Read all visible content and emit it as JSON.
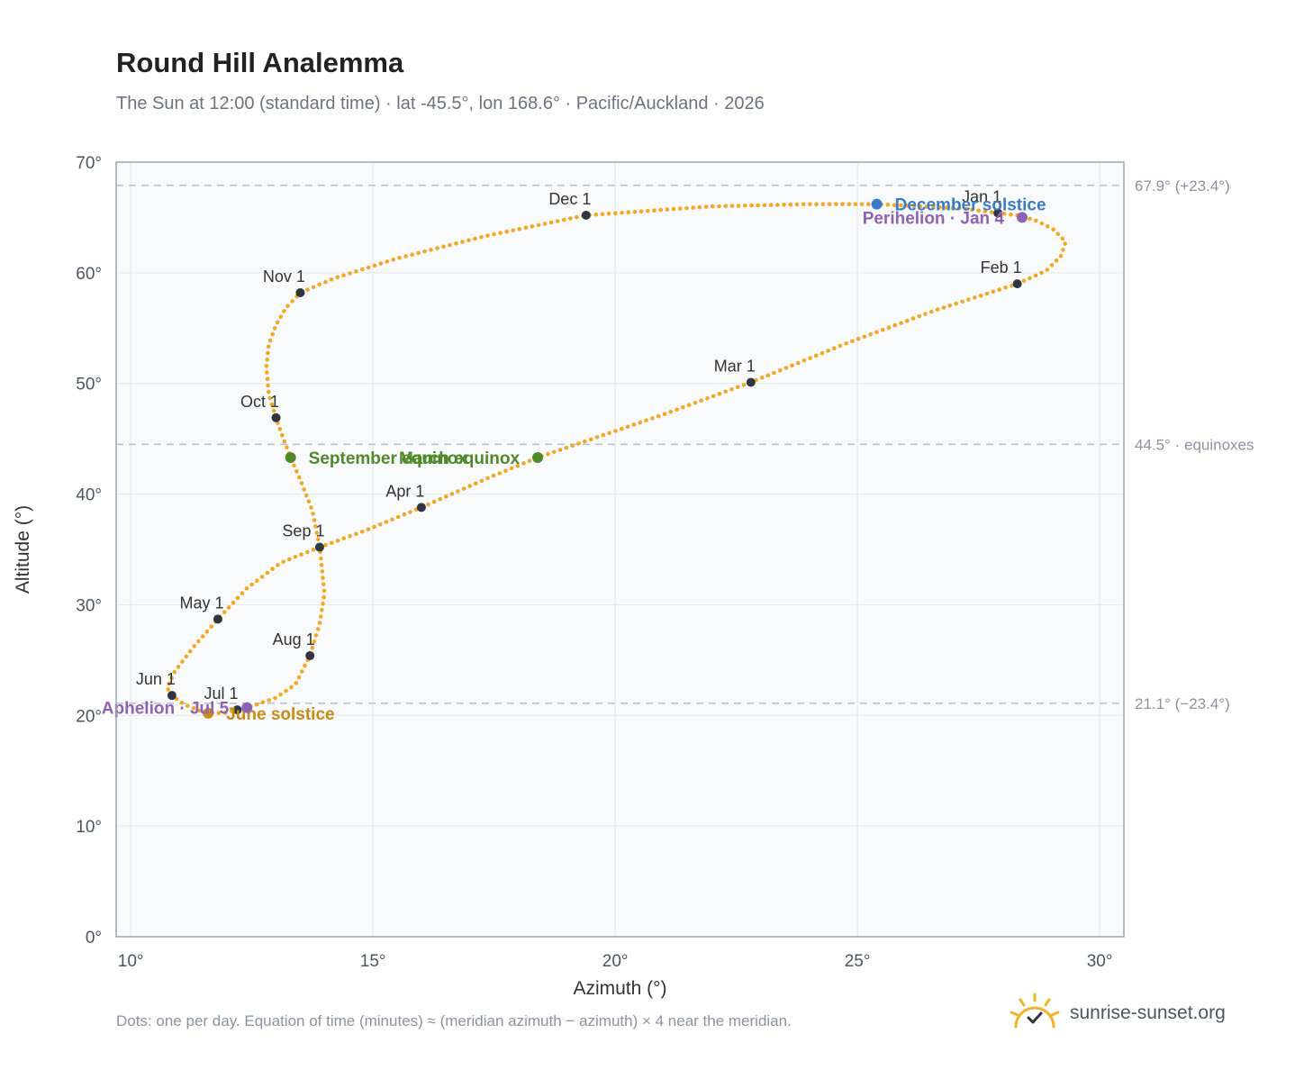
{
  "title": "Round Hill Analemma",
  "subtitle": "The Sun at 12:00 (standard time) · lat -45.5°, lon 168.6° · Pacific/Auckland · 2026",
  "footnote": "Dots: one per day. Equation of time (minutes) ≈ (meridian azimuth − azimuth) × 4 near the meridian.",
  "brand": {
    "text": "sunrise-sunset.org",
    "icon": "sun-logo-icon",
    "color": "#f0b429"
  },
  "colors": {
    "curve": "#f5a623",
    "month_marker": "#2f3640",
    "equinox": "#4f8a2a",
    "december_solstice": "#3a7bc8",
    "june_solstice": "#c98a12",
    "apsides": "#8e63b3",
    "plot_background": "#f8fafc",
    "frame": "#9aa5b4",
    "grid": "#e3e7ec",
    "reference_line": "#bcc4ce"
  },
  "chart_data": {
    "type": "scatter",
    "xlabel": "Azimuth (°)",
    "ylabel": "Altitude (°)",
    "xlim": [
      9.7,
      30.5
    ],
    "ylim": [
      0,
      70
    ],
    "x_ticks": [
      {
        "value": 10,
        "label": "10°"
      },
      {
        "value": 15,
        "label": "15°"
      },
      {
        "value": 20,
        "label": "20°"
      },
      {
        "value": 25,
        "label": "25°"
      },
      {
        "value": 30,
        "label": "30°"
      }
    ],
    "y_ticks": [
      {
        "value": 0,
        "label": "0°"
      },
      {
        "value": 10,
        "label": "10°"
      },
      {
        "value": 20,
        "label": "20°"
      },
      {
        "value": 30,
        "label": "30°"
      },
      {
        "value": 40,
        "label": "40°"
      },
      {
        "value": 50,
        "label": "50°"
      },
      {
        "value": 60,
        "label": "60°"
      },
      {
        "value": 70,
        "label": "70°"
      }
    ],
    "grid": true,
    "reference_lines": [
      {
        "altitude": 67.9,
        "label": "67.9° (+23.4°)"
      },
      {
        "altitude": 44.5,
        "label": "44.5° · equinoxes"
      },
      {
        "altitude": 21.1,
        "label": "21.1° (−23.4°)"
      }
    ],
    "series": [
      {
        "points": [
          [
            27.9,
            65.4
          ],
          [
            28.3,
            65.2
          ],
          [
            28.7,
            64.7
          ],
          [
            29.05,
            63.9
          ],
          [
            29.3,
            62.8
          ],
          [
            29.2,
            61.5
          ],
          [
            28.9,
            60.2
          ],
          [
            28.3,
            59.0
          ],
          [
            26.6,
            56.6
          ],
          [
            24.7,
            53.5
          ],
          [
            22.8,
            50.1
          ],
          [
            21.0,
            47.2
          ],
          [
            19.4,
            44.8
          ],
          [
            18.4,
            43.3
          ],
          [
            17.4,
            41.5
          ],
          [
            16.0,
            38.8
          ],
          [
            14.9,
            36.8
          ],
          [
            13.9,
            35.2
          ],
          [
            13.1,
            33.8
          ],
          [
            12.4,
            31.5
          ],
          [
            11.8,
            28.7
          ],
          [
            11.3,
            26.2
          ],
          [
            10.9,
            23.9
          ],
          [
            10.75,
            22.5
          ],
          [
            10.85,
            21.8
          ],
          [
            11.1,
            21.0
          ],
          [
            11.5,
            20.3
          ],
          [
            11.9,
            20.2
          ],
          [
            12.2,
            20.5
          ],
          [
            12.55,
            20.9
          ],
          [
            13.0,
            21.6
          ],
          [
            13.4,
            22.8
          ],
          [
            13.7,
            25.4
          ],
          [
            13.9,
            28.3
          ],
          [
            14.0,
            31.0
          ],
          [
            13.9,
            35.2
          ],
          [
            13.75,
            38.5
          ],
          [
            13.5,
            41.3
          ],
          [
            13.3,
            43.3
          ],
          [
            13.1,
            45.6
          ],
          [
            13.0,
            46.9
          ],
          [
            12.85,
            49.0
          ],
          [
            12.8,
            51.5
          ],
          [
            12.85,
            53.5
          ],
          [
            13.0,
            55.3
          ],
          [
            13.2,
            56.8
          ],
          [
            13.5,
            58.2
          ],
          [
            14.2,
            59.5
          ],
          [
            15.5,
            61.3
          ],
          [
            17.3,
            63.3
          ],
          [
            19.4,
            65.2
          ],
          [
            22.0,
            66.0
          ],
          [
            24.0,
            66.2
          ],
          [
            25.4,
            66.2
          ],
          [
            27.2,
            65.8
          ],
          [
            27.9,
            65.4
          ]
        ]
      }
    ],
    "month_markers": [
      {
        "label": "Jan 1",
        "x": 27.9,
        "y": 65.4
      },
      {
        "label": "Feb 1",
        "x": 28.3,
        "y": 59.0
      },
      {
        "label": "Mar 1",
        "x": 22.8,
        "y": 50.1
      },
      {
        "label": "Apr 1",
        "x": 16.0,
        "y": 38.8
      },
      {
        "label": "May 1",
        "x": 11.8,
        "y": 28.7
      },
      {
        "label": "Jun 1",
        "x": 10.85,
        "y": 21.8
      },
      {
        "label": "Jul 1",
        "x": 12.2,
        "y": 20.5
      },
      {
        "label": "Aug 1",
        "x": 13.7,
        "y": 25.4
      },
      {
        "label": "Sep 1",
        "x": 13.9,
        "y": 35.2
      },
      {
        "label": "Oct 1",
        "x": 13.0,
        "y": 46.9
      },
      {
        "label": "Nov 1",
        "x": 13.5,
        "y": 58.2
      },
      {
        "label": "Dec 1",
        "x": 19.4,
        "y": 65.2
      }
    ],
    "events": [
      {
        "label": "December solstice",
        "x": 25.4,
        "y": 66.2,
        "color": "#3a7bc8",
        "side": "right"
      },
      {
        "label": "Perihelion · Jan 4",
        "x": 28.4,
        "y": 65.0,
        "color": "#8e63b3",
        "side": "left"
      },
      {
        "label": "March equinox",
        "x": 18.4,
        "y": 43.3,
        "color": "#4f8a2a",
        "side": "left"
      },
      {
        "label": "September equinox",
        "x": 13.3,
        "y": 43.3,
        "color": "#4f8a2a",
        "side": "right"
      },
      {
        "label": "June solstice",
        "x": 11.6,
        "y": 20.2,
        "color": "#c98a12",
        "side": "right"
      },
      {
        "label": "Aphelion · Jul 5",
        "x": 12.4,
        "y": 20.7,
        "color": "#8e63b3",
        "side": "left"
      }
    ]
  }
}
